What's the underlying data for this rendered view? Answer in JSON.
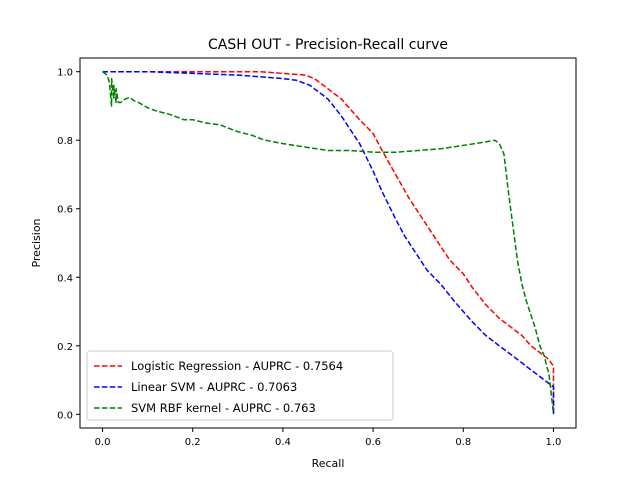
{
  "chart_data": {
    "type": "line",
    "title": "CASH OUT  - Precision-Recall curve",
    "xlabel": "Recall",
    "ylabel": "Precision",
    "xlim": [
      -0.05,
      1.05
    ],
    "ylim": [
      -0.04,
      1.04
    ],
    "xticks": [
      0.0,
      0.2,
      0.4,
      0.6,
      0.8,
      1.0
    ],
    "yticks": [
      0.0,
      0.2,
      0.4,
      0.6,
      0.8,
      1.0
    ],
    "xtick_labels": [
      "0.0",
      "0.2",
      "0.4",
      "0.6",
      "0.8",
      "1.0"
    ],
    "ytick_labels": [
      "0.0",
      "0.2",
      "0.4",
      "0.6",
      "0.8",
      "1.0"
    ],
    "grid": false,
    "legend_position": "lower-left",
    "series": [
      {
        "name": "Logistic Regression - AUPRC - 0.7564",
        "color": "#ff0000",
        "x": [
          0.0,
          0.02,
          0.1,
          0.2,
          0.3,
          0.35,
          0.4,
          0.45,
          0.47,
          0.5,
          0.53,
          0.55,
          0.57,
          0.6,
          0.62,
          0.65,
          0.68,
          0.7,
          0.72,
          0.75,
          0.77,
          0.8,
          0.82,
          0.85,
          0.88,
          0.9,
          0.93,
          0.95,
          0.97,
          0.99,
          1.0,
          1.0
        ],
        "y": [
          1.0,
          1.0,
          1.0,
          1.0,
          1.0,
          1.0,
          0.995,
          0.99,
          0.98,
          0.95,
          0.92,
          0.89,
          0.86,
          0.82,
          0.77,
          0.7,
          0.63,
          0.59,
          0.55,
          0.49,
          0.45,
          0.41,
          0.37,
          0.32,
          0.28,
          0.26,
          0.23,
          0.2,
          0.18,
          0.16,
          0.14,
          0.0
        ]
      },
      {
        "name": "Linear SVM - AUPRC - 0.7063",
        "color": "#0000ff",
        "x": [
          0.0,
          0.02,
          0.1,
          0.2,
          0.3,
          0.35,
          0.4,
          0.43,
          0.46,
          0.5,
          0.53,
          0.55,
          0.57,
          0.6,
          0.62,
          0.65,
          0.67,
          0.7,
          0.72,
          0.75,
          0.78,
          0.8,
          0.82,
          0.85,
          0.88,
          0.9,
          0.93,
          0.95,
          0.98,
          0.99,
          1.0,
          1.0
        ],
        "y": [
          1.0,
          1.0,
          1.0,
          0.995,
          0.99,
          0.985,
          0.98,
          0.975,
          0.96,
          0.92,
          0.87,
          0.83,
          0.79,
          0.71,
          0.65,
          0.57,
          0.52,
          0.46,
          0.42,
          0.38,
          0.33,
          0.3,
          0.27,
          0.23,
          0.2,
          0.18,
          0.15,
          0.13,
          0.1,
          0.09,
          0.08,
          0.0
        ]
      },
      {
        "name": "SVM RBF kernel - AUPRC - 0.763",
        "color": "#008000",
        "x": [
          0.0,
          0.01,
          0.015,
          0.02,
          0.02,
          0.025,
          0.025,
          0.03,
          0.03,
          0.035,
          0.04,
          0.05,
          0.06,
          0.07,
          0.08,
          0.1,
          0.12,
          0.15,
          0.18,
          0.2,
          0.23,
          0.26,
          0.3,
          0.33,
          0.36,
          0.4,
          0.45,
          0.5,
          0.53,
          0.55,
          0.6,
          0.65,
          0.7,
          0.75,
          0.8,
          0.85,
          0.87,
          0.88,
          0.89,
          0.9,
          0.91,
          0.92,
          0.93,
          0.94,
          0.95,
          0.96,
          0.97,
          0.98,
          0.985,
          0.99,
          0.995,
          1.0
        ],
        "y": [
          1.0,
          0.99,
          0.97,
          0.9,
          0.98,
          0.92,
          0.96,
          0.91,
          0.95,
          0.91,
          0.91,
          0.92,
          0.925,
          0.915,
          0.91,
          0.895,
          0.885,
          0.875,
          0.86,
          0.86,
          0.85,
          0.845,
          0.825,
          0.815,
          0.8,
          0.79,
          0.78,
          0.77,
          0.77,
          0.77,
          0.765,
          0.765,
          0.77,
          0.775,
          0.785,
          0.795,
          0.8,
          0.79,
          0.76,
          0.65,
          0.55,
          0.45,
          0.38,
          0.33,
          0.29,
          0.25,
          0.2,
          0.17,
          0.14,
          0.12,
          0.06,
          0.0
        ]
      }
    ]
  }
}
